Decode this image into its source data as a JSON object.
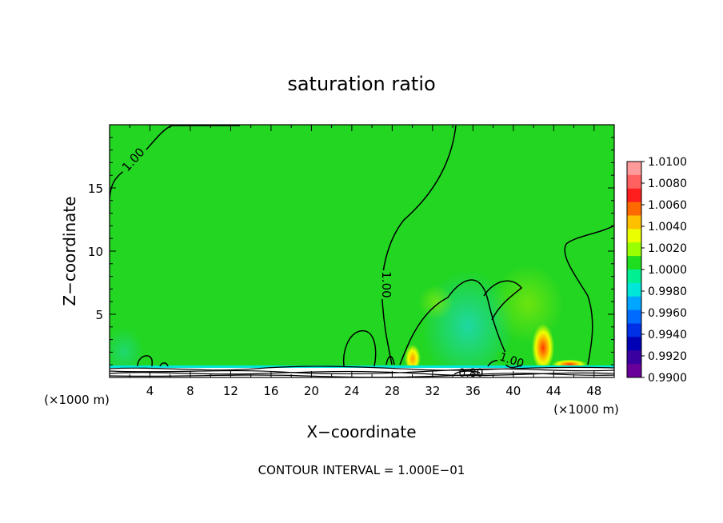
{
  "chart_data": {
    "type": "heatmap",
    "title": "saturation ratio",
    "xlabel": "X−coordinate",
    "ylabel": "Z−coordinate",
    "x_unit": "(×1000 m)",
    "xlim": [
      0,
      50
    ],
    "ylim": [
      0,
      20
    ],
    "x_ticks": [
      4,
      8,
      12,
      16,
      20,
      24,
      28,
      32,
      36,
      40,
      44,
      48
    ],
    "y_ticks": [
      5,
      10,
      15
    ],
    "footer": "CONTOUR INTERVAL = 1.000E−01",
    "contour_labels": [
      "1.00",
      "1.00",
      "1.00",
      "0.80"
    ],
    "colorbar": {
      "labels": [
        "1.0100",
        "1.0080",
        "1.0060",
        "1.0040",
        "1.0020",
        "1.0000",
        "0.9980",
        "0.9960",
        "0.9940",
        "0.9920",
        "0.9900"
      ],
      "colors": [
        "#ff9a9a",
        "#ff6060",
        "#ff1e1e",
        "#ff6a00",
        "#ffc000",
        "#ecff00",
        "#9aff00",
        "#1fdd1f",
        "#00ef92",
        "#00e6d8",
        "#00a6ff",
        "#006cff",
        "#0030e6",
        "#0000b4",
        "#3a00a0",
        "#6a009a"
      ]
    }
  }
}
